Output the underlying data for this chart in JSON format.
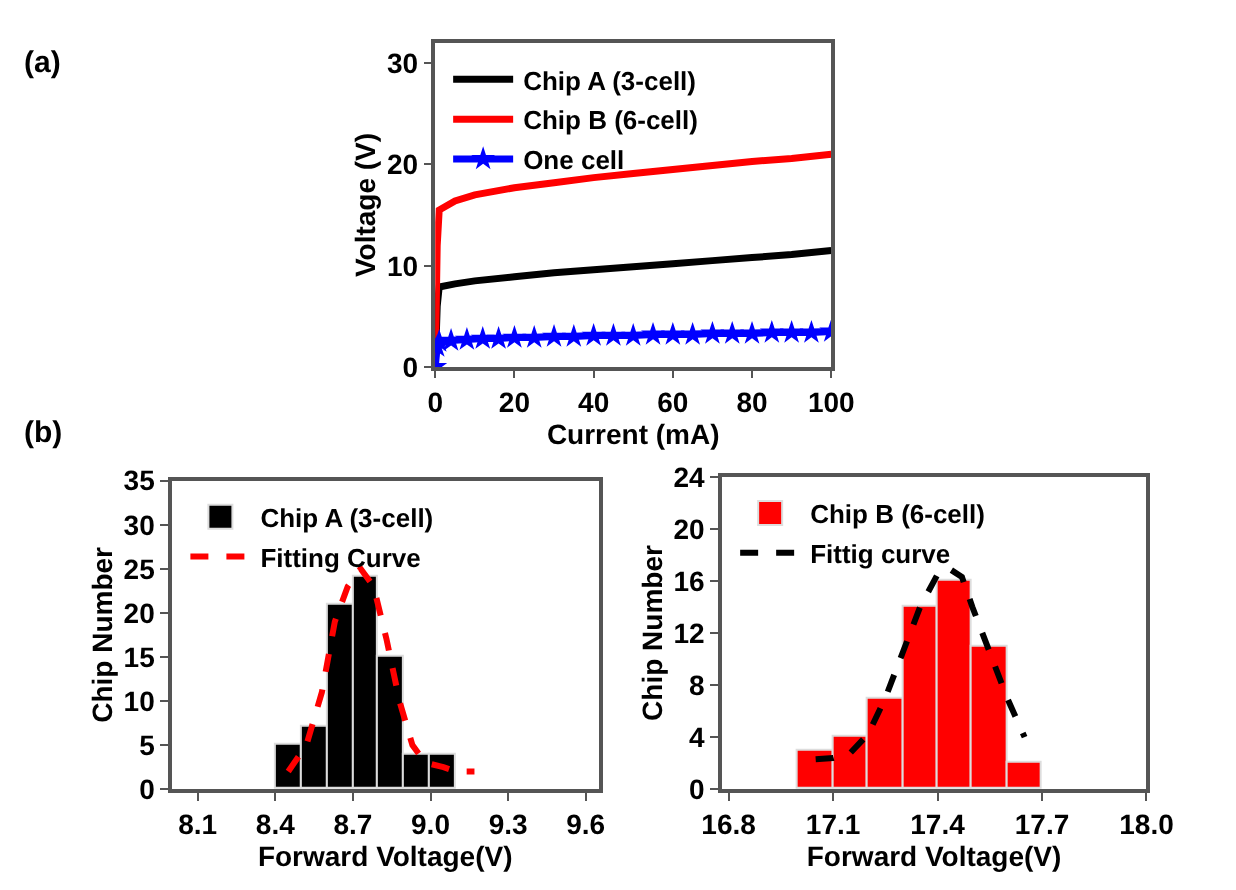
{
  "chart_data": [
    {
      "type": "line",
      "xlabel": "Current (mA)",
      "ylabel": "Voltage (V)",
      "annotations": [
        "(a)"
      ],
      "xlim": [
        0,
        100
      ],
      "ylim": [
        0,
        32
      ],
      "xticks": [
        0,
        20,
        40,
        60,
        80,
        100
      ],
      "yticks": [
        0,
        10,
        20,
        30
      ],
      "legend": "top left",
      "line_style": "solid",
      "series": [
        {
          "name": "Chip A (3-cell)",
          "color": "#000000",
          "marker": "none",
          "x": [
            0,
            0.5,
            1,
            5,
            10,
            20,
            30,
            40,
            50,
            60,
            70,
            80,
            90,
            100
          ],
          "values": [
            0,
            6,
            7.9,
            8.2,
            8.5,
            8.9,
            9.3,
            9.6,
            9.9,
            10.2,
            10.5,
            10.8,
            11.1,
            11.5
          ]
        },
        {
          "name": "Chip B (6-cell)",
          "color": "#ff0000",
          "marker": "none",
          "x": [
            0,
            0.5,
            1,
            5,
            10,
            20,
            30,
            40,
            50,
            60,
            70,
            80,
            90,
            100
          ],
          "values": [
            0,
            12,
            15.5,
            16.4,
            17,
            17.7,
            18.2,
            18.7,
            19.1,
            19.5,
            19.9,
            20.3,
            20.6,
            21
          ]
        },
        {
          "name": "One cell",
          "color": "#0000ff",
          "marker": "star",
          "x": [
            0,
            0.5,
            1,
            4,
            8,
            12,
            16,
            20,
            25,
            30,
            35,
            40,
            45,
            50,
            55,
            60,
            65,
            70,
            75,
            80,
            85,
            90,
            95,
            100
          ],
          "values": [
            0,
            2,
            2.5,
            2.6,
            2.7,
            2.8,
            2.8,
            2.9,
            2.9,
            3.0,
            3.0,
            3.1,
            3.1,
            3.1,
            3.2,
            3.2,
            3.2,
            3.3,
            3.3,
            3.3,
            3.4,
            3.4,
            3.4,
            3.5
          ]
        }
      ]
    },
    {
      "type": "histogram",
      "xlabel": "Forward Voltage(V)",
      "ylabel": "Chip Number",
      "annotations": [
        "(b)"
      ],
      "xlim": [
        8.0,
        9.65
      ],
      "ylim": [
        0,
        35
      ],
      "xticks": [
        8.1,
        8.4,
        8.7,
        {
          "value": 9,
          "label": "9.0"
        },
        9.3,
        9.6
      ],
      "yticks": [
        0,
        5,
        10,
        15,
        20,
        25,
        30,
        35
      ],
      "legend": "top left",
      "bins": [
        8.4,
        8.5,
        8.6,
        8.7,
        8.8,
        8.9,
        9.0,
        9.1
      ],
      "series": [
        {
          "name": "Chip A (3-cell)",
          "type": "histogram",
          "color": "#000000",
          "values": [
            5,
            7,
            21,
            24,
            15,
            4,
            4
          ]
        },
        {
          "name": "Fitting Curve",
          "type": "line",
          "color": "#ff0000",
          "line_style": "dashed",
          "x": [
            8.45,
            8.52,
            8.58,
            8.63,
            8.68,
            8.73,
            8.78,
            8.83,
            8.88,
            8.93,
            8.98,
            9.05,
            9.1,
            9.17
          ],
          "values": [
            2,
            5,
            11,
            19,
            23,
            25,
            23,
            17,
            10,
            5,
            3,
            2.5,
            2,
            2
          ]
        }
      ]
    },
    {
      "type": "histogram",
      "xlabel": "Forward Voltage(V)",
      "ylabel": "Chip Number",
      "xlim": [
        16.78,
        18.0
      ],
      "ylim": [
        0,
        24
      ],
      "xticks": [
        16.8,
        17.1,
        17.4,
        17.7,
        {
          "value": 18,
          "label": "18.0"
        }
      ],
      "yticks": [
        0,
        4,
        8,
        12,
        16,
        20,
        24
      ],
      "legend": "top left",
      "bins": [
        17.0,
        17.1,
        17.2,
        17.3,
        17.4,
        17.5,
        17.6,
        17.7
      ],
      "series": [
        {
          "name": "Chip B (6-cell)",
          "type": "histogram",
          "color": "#ff0000",
          "values": [
            3,
            4,
            7,
            14,
            16,
            11,
            2
          ]
        },
        {
          "name": "Fittig curve",
          "type": "line",
          "color": "#000000",
          "line_style": "dashed",
          "x": [
            17.05,
            17.1,
            17.15,
            17.2,
            17.25,
            17.3,
            17.35,
            17.4,
            17.43,
            17.47,
            17.5,
            17.55,
            17.6,
            17.65
          ],
          "values": [
            2.3,
            2.4,
            2.8,
            4.2,
            7,
            10.5,
            14,
            16.5,
            17,
            16.3,
            14,
            10.5,
            7,
            4
          ]
        }
      ]
    }
  ]
}
